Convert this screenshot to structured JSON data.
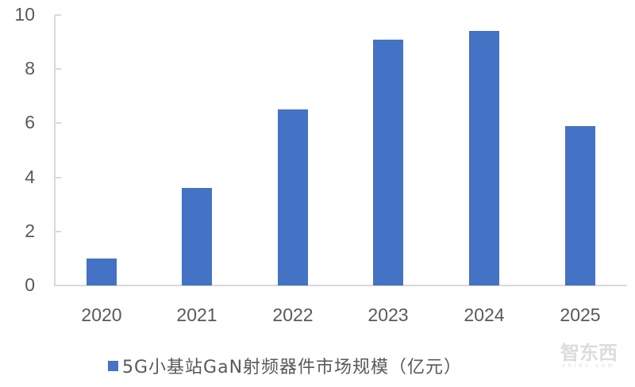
{
  "chart_data": {
    "type": "bar",
    "title": "",
    "categories": [
      "2020",
      "2021",
      "2022",
      "2023",
      "2024",
      "2025"
    ],
    "series": [
      {
        "name": "5G小基站GaN射频器件市场规模（亿元）",
        "values": [
          1.0,
          3.6,
          6.5,
          9.1,
          9.4,
          5.9
        ],
        "color": "#4472c4"
      }
    ],
    "xlabel": "",
    "ylabel": "",
    "ylim": [
      0,
      10
    ],
    "yticks": [
      "0",
      "2",
      "4",
      "6",
      "8",
      "10"
    ],
    "grid": false,
    "legend_position": "bottom"
  },
  "legend": {
    "label": "5G小基站GaN射频器件市场规模（亿元）"
  },
  "watermark": {
    "main": "智东西",
    "sub": "zhidx.com"
  }
}
